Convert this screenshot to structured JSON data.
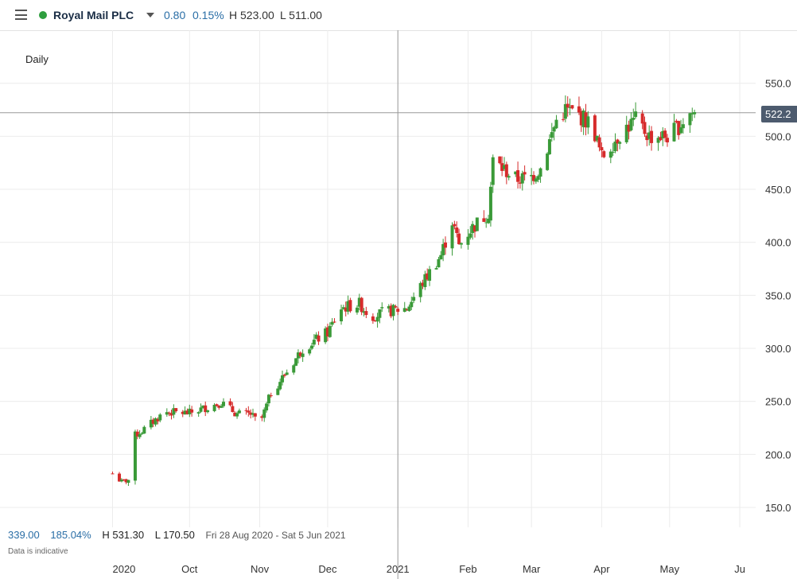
{
  "header": {
    "instrument": "Royal Mail PLC",
    "change": "0.80",
    "change_pct": "0.15%",
    "high": "H 523.00",
    "low": "L 511.00"
  },
  "chart_data": {
    "type": "candlestick",
    "title": "",
    "period": "Daily",
    "y_ticks": [
      "550.0",
      "500.0",
      "450.0",
      "400.0",
      "350.0",
      "300.0",
      "250.0",
      "200.0",
      "150.0"
    ],
    "y_tick_values": [
      550,
      500,
      450,
      400,
      350,
      300,
      250,
      200,
      150
    ],
    "ylim": [
      127,
      585
    ],
    "x_ticks": [
      "2020",
      "Oct",
      "Nov",
      "Dec",
      "2021",
      "Feb",
      "Mar",
      "Apr",
      "May",
      "Ju"
    ],
    "x_tick_dates": [
      "2020-08-28",
      "2020-10-01",
      "2020-11-01",
      "2020-12-01",
      "2021-01-01",
      "2021-02-01",
      "2021-03-01",
      "2021-04-01",
      "2021-05-01",
      "2021-06-01"
    ],
    "current_price": "522.2",
    "current_value": 522.2,
    "grid": true,
    "colors": {
      "up": "#3a9a38",
      "down": "#d62b2b",
      "grid": "#ececec",
      "crosshair": "#999999"
    },
    "anchors": {
      "dates": [
        "2020-08-28",
        "2020-09-01",
        "2020-09-04",
        "2020-09-07",
        "2020-09-10",
        "2020-09-20",
        "2020-10-01",
        "2020-10-15",
        "2020-10-22",
        "2020-10-28",
        "2020-11-01",
        "2020-11-06",
        "2020-11-13",
        "2020-11-20",
        "2020-12-01",
        "2020-12-07",
        "2020-12-15",
        "2020-12-20",
        "2020-12-28",
        "2021-01-05",
        "2021-01-12",
        "2021-01-20",
        "2021-01-25",
        "2021-01-28",
        "2021-02-02",
        "2021-02-10",
        "2021-02-12",
        "2021-02-22",
        "2021-02-28",
        "2021-03-05",
        "2021-03-12",
        "2021-03-16",
        "2021-03-22",
        "2021-03-28",
        "2021-04-01",
        "2021-04-10",
        "2021-04-16",
        "2021-04-22",
        "2021-05-01",
        "2021-05-10"
      ],
      "values": [
        182,
        174,
        176,
        218,
        222,
        240,
        239,
        249,
        238,
        238,
        228,
        258,
        278,
        300,
        315,
        338,
        342,
        330,
        335,
        338,
        362,
        388,
        420,
        397,
        412,
        428,
        477,
        460,
        460,
        470,
        515,
        525,
        520,
        510,
        480,
        505,
        515,
        500,
        500,
        522
      ]
    },
    "first_date": "2020-08-28",
    "last_date": "2021-05-12"
  },
  "stats": {
    "change": "339.00",
    "change_pct": "185.04%",
    "high": "H 531.30",
    "low": "L 170.50",
    "range": "Fri 28 Aug 2020 - Sat 5 Jun 2021",
    "note": "Data is indicative"
  }
}
